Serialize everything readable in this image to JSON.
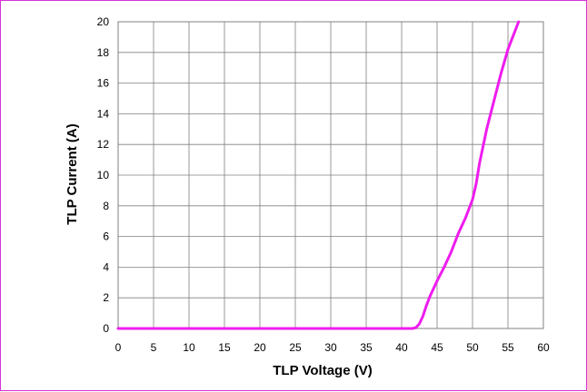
{
  "colors": {
    "frame_border": "#d633d6",
    "series_line": "#ee1cee",
    "grid": "#808080"
  },
  "chart_data": {
    "type": "line",
    "xlabel": "TLP Voltage (V)",
    "ylabel": "TLP Current (A)",
    "xlim": [
      0,
      60
    ],
    "ylim": [
      0,
      20
    ],
    "x_ticks": [
      "0",
      "5",
      "10",
      "15",
      "20",
      "25",
      "30",
      "35",
      "40",
      "45",
      "50",
      "55",
      "60"
    ],
    "y_ticks": [
      "0",
      "2",
      "4",
      "6",
      "8",
      "10",
      "12",
      "14",
      "16",
      "18",
      "20"
    ],
    "grid": true,
    "legend": "none",
    "series": [
      {
        "color": "#ee1cee",
        "x": [
          0,
          10,
          20,
          30,
          40,
          41.5,
          42.0,
          42.5,
          43.0,
          43.5,
          44.0,
          45.0,
          46.0,
          47.0,
          48.0,
          49.0,
          50.0,
          50.5,
          51.0,
          52.0,
          53.0,
          54.0,
          55.0,
          56.5
        ],
        "y": [
          0,
          0,
          0,
          0,
          0,
          0,
          0.05,
          0.3,
          0.8,
          1.5,
          2.1,
          3.1,
          4.0,
          5.0,
          6.2,
          7.2,
          8.4,
          9.4,
          10.8,
          13.0,
          14.8,
          16.6,
          18.2,
          20.0
        ]
      }
    ]
  }
}
